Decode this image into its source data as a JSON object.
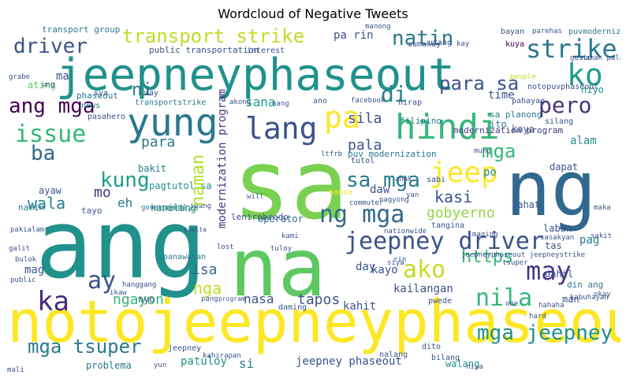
{
  "title": "Wordcloud of Negative Tweets",
  "words": [
    {
      "text": "notojeepneyphaseout",
      "color": "#fde725"
    },
    {
      "text": "jeepneyphaseout",
      "color": "#21918c"
    },
    {
      "text": "ang",
      "color": "#21918c"
    },
    {
      "text": "sa",
      "color": "#7ad151"
    },
    {
      "text": "na",
      "color": "#5ec962"
    },
    {
      "text": "ng",
      "color": "#31688e"
    },
    {
      "text": "hindi",
      "color": "#35b779"
    },
    {
      "text": "yung",
      "color": "#2a788e"
    },
    {
      "text": "lang",
      "color": "#3b528b"
    },
    {
      "text": "transport strike",
      "color": "#bddf26"
    },
    {
      "text": "strike",
      "color": "#2a788e"
    },
    {
      "text": "ko",
      "color": "#1f9e89"
    },
    {
      "text": "jeepney driver",
      "color": "#3b528b"
    },
    {
      "text": "mga jeepney",
      "color": "#21918c"
    },
    {
      "text": "mga tsuper",
      "color": "#2a788e"
    },
    {
      "text": "ang mga",
      "color": "#440154"
    },
    {
      "text": "driver",
      "color": "#3b528b"
    },
    {
      "text": "natin",
      "color": "#2a788e"
    },
    {
      "text": "pero",
      "color": "#46327e"
    },
    {
      "text": "pa",
      "color": "#fde725"
    },
    {
      "text": "issue",
      "color": "#35b779"
    },
    {
      "text": "jeep",
      "color": "#fde725"
    },
    {
      "text": "sa mga",
      "color": "#2a788e"
    },
    {
      "text": "ng mga",
      "color": "#31688e"
    },
    {
      "text": "kung",
      "color": "#1f9e89"
    },
    {
      "text": "ka",
      "color": "#472d7b"
    },
    {
      "text": "may",
      "color": "#443983"
    },
    {
      "text": "ako",
      "color": "#bddf26"
    },
    {
      "text": "nila",
      "color": "#35b779"
    },
    {
      "text": "para sa",
      "color": "#3b528b"
    },
    {
      "text": "di",
      "color": "#26828e"
    },
    {
      "text": "ba",
      "color": "#31688e"
    },
    {
      "text": "gobyerno",
      "color": "#8fd744"
    },
    {
      "text": "kasi",
      "color": "#3b528b"
    },
    {
      "text": "wala",
      "color": "#26828e"
    },
    {
      "text": "ay",
      "color": "#3b528b"
    },
    {
      "text": "https",
      "color": "#35b779"
    },
    {
      "text": "naman",
      "color": "#b5de2b"
    },
    {
      "text": "sila",
      "color": "#3b528b"
    },
    {
      "text": "sana",
      "color": "#1f9e89"
    },
    {
      "text": "mga",
      "color": "#35b779"
    },
    {
      "text": "para",
      "color": "#2a788e"
    },
    {
      "text": "ni",
      "color": "#2a788e"
    },
    {
      "text": "pala",
      "color": "#3b528b"
    },
    {
      "text": "mo",
      "color": "#46327e"
    },
    {
      "text": "eh",
      "color": "#2a788e"
    },
    {
      "text": "isa",
      "color": "#31688e"
    },
    {
      "text": "nga",
      "color": "#bddf26"
    },
    {
      "text": "nasa",
      "color": "#3b528b"
    },
    {
      "text": "tapos",
      "color": "#3b528b"
    },
    {
      "text": "kahit",
      "color": "#3b528b"
    },
    {
      "text": "kailangan",
      "color": "#3b528b"
    },
    {
      "text": "ngayon",
      "color": "#35b779"
    },
    {
      "text": "jeepney phaseout",
      "color": "#3b528b"
    },
    {
      "text": "si",
      "color": "#2a788e"
    },
    {
      "text": "patuloy",
      "color": "#21918c"
    },
    {
      "text": "problema",
      "color": "#2a788e"
    },
    {
      "text": "walang",
      "color": "#21918c"
    },
    {
      "text": "dito",
      "color": "#3b528b"
    },
    {
      "text": "ma",
      "color": "#3b528b"
    },
    {
      "text": "ating",
      "color": "#5ec962"
    },
    {
      "text": "bakit",
      "color": "#2a788e"
    },
    {
      "text": "dapat",
      "color": "#3b528b"
    },
    {
      "text": "alam",
      "color": "#21918c"
    },
    {
      "text": "po",
      "color": "#21918c"
    },
    {
      "text": "lahat",
      "color": "#3b528b"
    },
    {
      "text": "laban",
      "color": "#3b528b"
    },
    {
      "text": "pag",
      "color": "#2a788e"
    },
    {
      "text": "dahil",
      "color": "#3b528b"
    },
    {
      "text": "man",
      "color": "#3b528b"
    },
    {
      "text": "din ang",
      "color": "#2a788e"
    },
    {
      "text": "day",
      "color": "#3b528b"
    },
    {
      "text": "mag",
      "color": "#3b528b"
    },
    {
      "text": "nyo",
      "color": "#3b528b"
    },
    {
      "text": "tas",
      "color": "#3b528b"
    },
    {
      "text": "operator",
      "color": "#31688e"
    },
    {
      "text": "kayo",
      "color": "#3b528b"
    },
    {
      "text": "daw",
      "color": "#3b528b"
    },
    {
      "text": "ayaw",
      "color": "#3b528b"
    },
    {
      "text": "namin",
      "color": "#2a788e"
    },
    {
      "text": "tayo",
      "color": "#3b528b"
    },
    {
      "text": "pagtutol sa",
      "color": "#21918c"
    },
    {
      "text": "kanilang",
      "color": "#2a788e"
    },
    {
      "text": "pamilya",
      "color": "#35b779"
    },
    {
      "text": "puv modernization",
      "color": "#2a788e"
    },
    {
      "text": "modernization program",
      "color": "#443983"
    },
    {
      "text": "ito",
      "color": "#2a788e"
    },
    {
      "text": "kaya",
      "color": "#3b528b"
    },
    {
      "text": "time",
      "color": "#3b528b"
    },
    {
      "text": "sa planong",
      "color": "#2a788e"
    },
    {
      "text": "filipino",
      "color": "#2a788e"
    },
    {
      "text": "pa rin",
      "color": "#3b528b"
    },
    {
      "text": "transport group",
      "color": "#2a788e"
    },
    {
      "text": "public transportation",
      "color": "#3b528b"
    },
    {
      "text": "interest",
      "color": "#3b528b"
    },
    {
      "text": "sumakay",
      "color": "#3b528b"
    },
    {
      "text": "utang",
      "color": "#3b528b"
    },
    {
      "text": "bayan",
      "color": "#3b528b"
    },
    {
      "text": "parehas",
      "color": "#3b528b"
    },
    {
      "text": "puvmodernization",
      "color": "#2a788e"
    },
    {
      "text": "kuya",
      "color": "#440154"
    },
    {
      "text": "kay",
      "color": "#3b528b"
    },
    {
      "text": "manong",
      "color": "#3b528b"
    },
    {
      "text": "way",
      "color": "#3b528b"
    },
    {
      "text": "sya",
      "color": "#3b528b"
    },
    {
      "text": "transportstrike",
      "color": "#2a788e"
    },
    {
      "text": "phaseout",
      "color": "#2a788e"
    },
    {
      "text": "news",
      "color": "#2a788e"
    },
    {
      "text": "pasahero",
      "color": "#3b528b"
    },
    {
      "text": "akong",
      "color": "#3b528b"
    },
    {
      "text": "nang",
      "color": "#3b528b"
    },
    {
      "text": "ano",
      "color": "#3b528b"
    },
    {
      "text": "facebook",
      "color": "#3b528b"
    },
    {
      "text": "notopuvphaseout",
      "color": "#3b528b"
    },
    {
      "text": "niyo",
      "color": "#21918c"
    },
    {
      "text": "silang",
      "color": "#3b528b"
    },
    {
      "text": "pahayag",
      "color": "#3b528b"
    },
    {
      "text": "people",
      "color": "#bddf26"
    },
    {
      "text": "hirap",
      "color": "#3b528b"
    },
    {
      "text": "mung",
      "color": "#3b528b"
    },
    {
      "text": "sabi",
      "color": "#3b528b"
    },
    {
      "text": "maging",
      "color": "#3b528b"
    },
    {
      "text": "tangina",
      "color": "#3b528b"
    },
    {
      "text": "nationwide",
      "color": "#3b528b"
    },
    {
      "text": "commuter",
      "color": "#3b528b"
    },
    {
      "text": "ibang",
      "color": "#3b528b"
    },
    {
      "text": "government",
      "color": "#2a788e"
    },
    {
      "text": "lenirobredo",
      "color": "#3b528b"
    },
    {
      "text": "panawagan",
      "color": "#2a788e"
    },
    {
      "text": "kami",
      "color": "#3b528b"
    },
    {
      "text": "yan",
      "color": "#3b528b"
    },
    {
      "text": "sakit",
      "color": "#3b528b"
    },
    {
      "text": "tsuper",
      "color": "#3b528b"
    },
    {
      "text": "hanggang",
      "color": "#3b528b"
    },
    {
      "text": "daming",
      "color": "#3b528b"
    },
    {
      "text": "rin",
      "color": "#3b528b"
    },
    {
      "text": "pwede",
      "color": "#3b528b"
    },
    {
      "text": "jeepneyphaseout jeepneystrike",
      "color": "#3b528b"
    },
    {
      "text": "hahaha",
      "color": "#3b528b"
    },
    {
      "text": "kabuhayan",
      "color": "#3b528b"
    },
    {
      "text": "bilang",
      "color": "#3b528b"
    },
    {
      "text": "nalang",
      "color": "#3b528b"
    },
    {
      "text": "jeepney",
      "color": "#3b528b"
    },
    {
      "text": "kahirapan",
      "color": "#3b528b"
    },
    {
      "text": "yun",
      "color": "#3b528b"
    },
    {
      "text": "bulok",
      "color": "#3b528b"
    },
    {
      "text": "public",
      "color": "#3b528b"
    },
    {
      "text": "galit",
      "color": "#3b528b"
    },
    {
      "text": "pakialam",
      "color": "#3b528b"
    },
    {
      "text": "grabe",
      "color": "#3b528b"
    },
    {
      "text": "ung",
      "color": "#3b528b"
    },
    {
      "text": "mali",
      "color": "#3b528b"
    },
    {
      "text": "okay",
      "color": "#3b528b"
    },
    {
      "text": "one",
      "color": "#3b528b"
    },
    {
      "text": "hard",
      "color": "#3b528b"
    },
    {
      "text": "niya",
      "color": "#3b528b"
    },
    {
      "text": "nagyong",
      "color": "#3b528b"
    },
    {
      "text": "ikaw",
      "color": "#3b528b"
    },
    {
      "text": "maka",
      "color": "#3b528b"
    },
    {
      "text": "pang",
      "color": "#3b528b"
    },
    {
      "text": "program",
      "color": "#3b528b"
    },
    {
      "text": "gusto",
      "color": "#3b528b"
    },
    {
      "text": "naman pala",
      "color": "#3b528b"
    },
    {
      "text": "tutol",
      "color": "#3b528b"
    },
    {
      "text": "ltfrb",
      "color": "#3b528b"
    },
    {
      "text": "will",
      "color": "#3b528b"
    },
    {
      "text": "anak",
      "color": "#3b528b"
    },
    {
      "text": "bansa",
      "color": "#fde725"
    },
    {
      "text": "sasakyan",
      "color": "#3b528b"
    },
    {
      "text": "lost",
      "color": "#3b528b"
    },
    {
      "text": "siya",
      "color": "#3b528b"
    },
    {
      "text": "tuloy",
      "color": "#3b528b"
    },
    {
      "text": "kumita",
      "color": "#3b528b"
    }
  ]
}
